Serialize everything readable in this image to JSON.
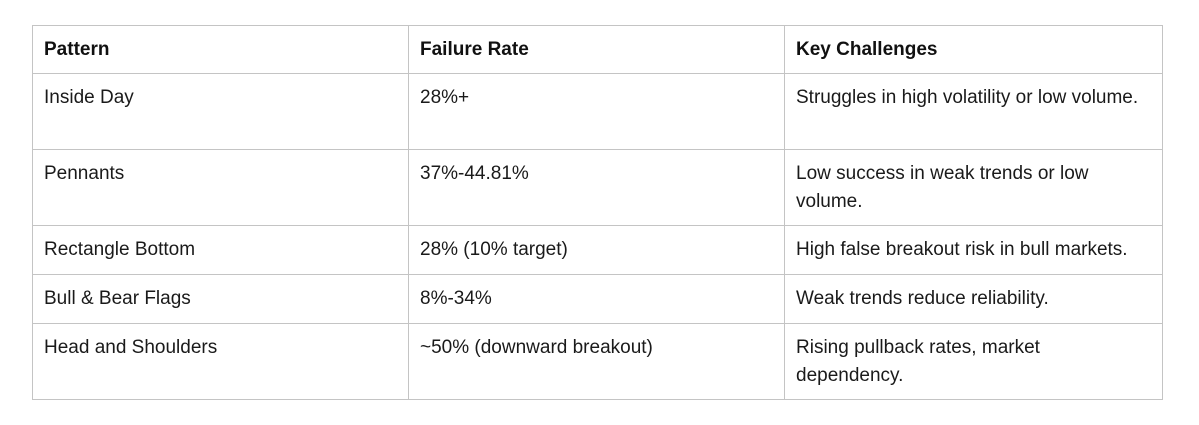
{
  "table": {
    "headers": [
      "Pattern",
      "Failure Rate",
      "Key Challenges"
    ],
    "rows": [
      [
        "Inside Day",
        "28%+",
        "Struggles in high volatility or low volume."
      ],
      [
        "Pennants",
        "37%-44.81%",
        "Low success in weak trends or low volume."
      ],
      [
        "Rectangle Bottom",
        "28% (10% target)",
        "High false breakout risk in bull markets."
      ],
      [
        "Bull & Bear Flags",
        "8%-34%",
        "Weak trends reduce reliability."
      ],
      [
        "Head and Shoulders",
        "~50% (downward breakout)",
        "Rising pullback rates, market dependency."
      ]
    ]
  }
}
